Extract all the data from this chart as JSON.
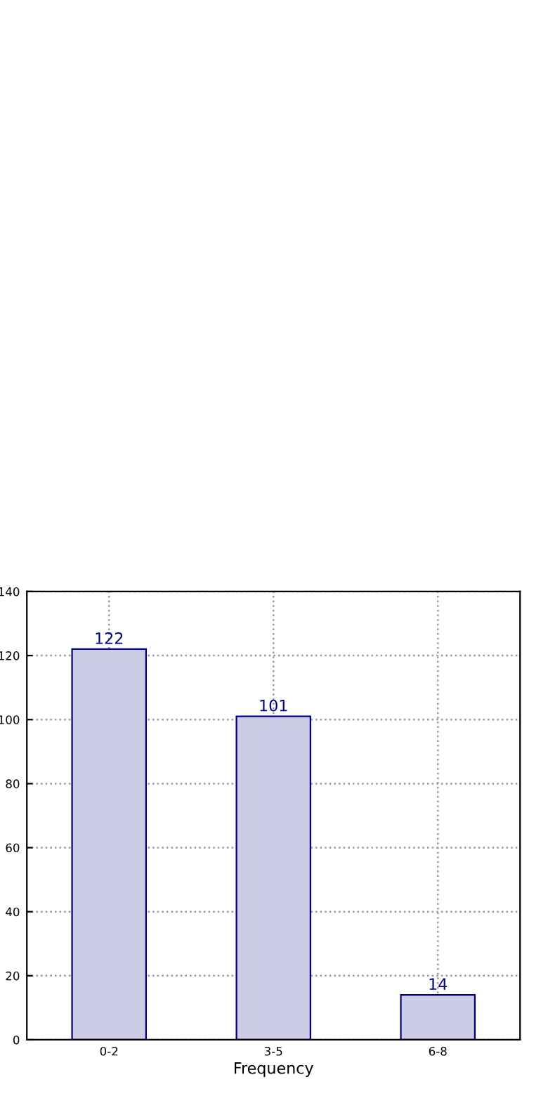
{
  "chart_data": {
    "type": "bar",
    "xlabel": "Frequency",
    "categories": [
      "0-2",
      "3-5",
      "6-8"
    ],
    "values": [
      122,
      101,
      14
    ],
    "color": "#cccce6",
    "ylim": [
      0,
      140
    ],
    "yticks": [
      0,
      20,
      40,
      60,
      80,
      100,
      120,
      140
    ],
    "grid": true,
    "data_labels": true
  }
}
